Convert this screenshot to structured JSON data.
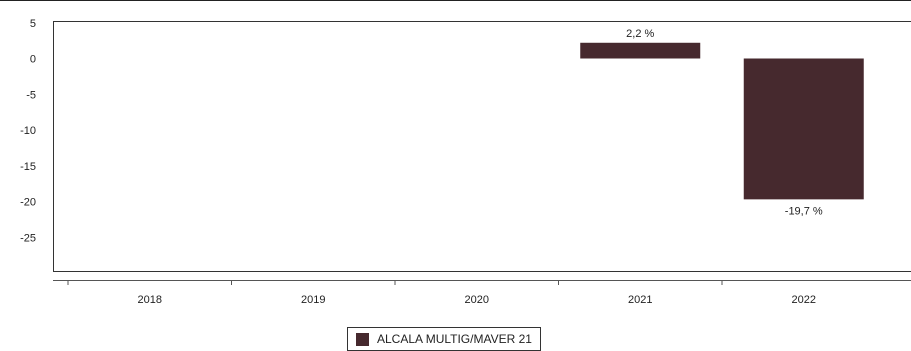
{
  "chart_data": {
    "type": "bar",
    "categories": [
      "2018",
      "2019",
      "2020",
      "2021",
      "2022"
    ],
    "series": [
      {
        "name": "ALCALA MULTIG/MAVER 21",
        "values": [
          null,
          null,
          null,
          2.2,
          -19.7
        ],
        "data_labels": [
          "",
          "",
          "",
          "2,2 %",
          "-19,7 %"
        ],
        "color": "#46292e"
      }
    ],
    "title": "",
    "xlabel": "",
    "ylabel": "",
    "ylim": [
      -30,
      5
    ],
    "yticks": [
      "5",
      "0",
      "-5",
      "-10",
      "-15",
      "-20",
      "-25"
    ],
    "grid": false,
    "legend_position": "bottom-center"
  }
}
